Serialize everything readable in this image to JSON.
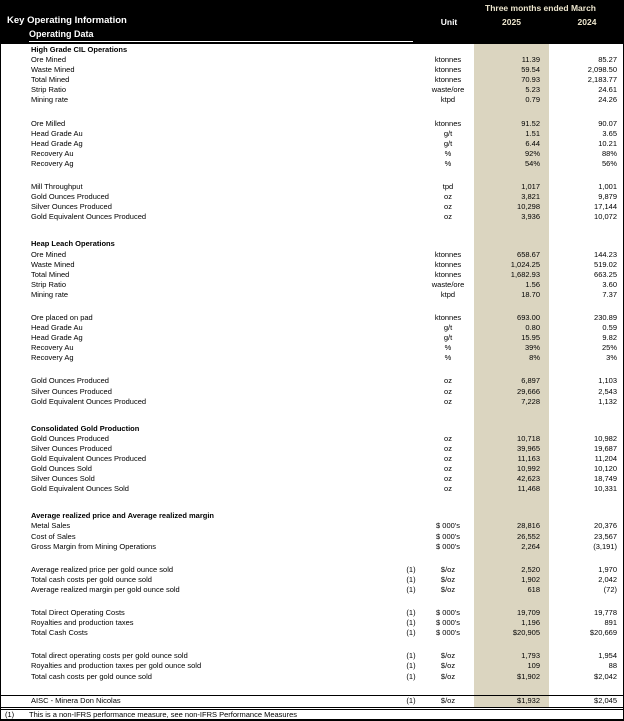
{
  "header": {
    "title": "Key Operating Information",
    "subtitle": "Operating Data",
    "period_label": "Three months ended March",
    "unit_label": "Unit",
    "col_2025": "2025",
    "col_2024": "2024"
  },
  "colors": {
    "header_bg": "#000000",
    "header_text": "#ffffff",
    "year_header_text": "#ece5cd",
    "column_band": "#dbd5c0"
  },
  "sections": [
    {
      "title": "High Grade CIL Operations",
      "groups": [
        [
          {
            "label": "Ore Mined",
            "fn": "",
            "unit": "ktonnes",
            "v2025": "11.39",
            "v2024": "85.27"
          },
          {
            "label": "Waste Mined",
            "fn": "",
            "unit": "ktonnes",
            "v2025": "59.54",
            "v2024": "2,098.50"
          },
          {
            "label": "Total Mined",
            "fn": "",
            "unit": "ktonnes",
            "v2025": "70.93",
            "v2024": "2,183.77"
          },
          {
            "label": "Strip Ratio",
            "fn": "",
            "unit": "waste/ore",
            "v2025": "5.23",
            "v2024": "24.61"
          },
          {
            "label": "Mining rate",
            "fn": "",
            "unit": "ktpd",
            "v2025": "0.79",
            "v2024": "24.26"
          }
        ],
        [
          {
            "label": "Ore Milled",
            "fn": "",
            "unit": "ktonnes",
            "v2025": "91.52",
            "v2024": "90.07"
          },
          {
            "label": "Head Grade Au",
            "fn": "",
            "unit": "g/t",
            "v2025": "1.51",
            "v2024": "3.65"
          },
          {
            "label": "Head Grade Ag",
            "fn": "",
            "unit": "g/t",
            "v2025": "6.44",
            "v2024": "10.21"
          },
          {
            "label": "Recovery Au",
            "fn": "",
            "unit": "%",
            "v2025": "92%",
            "v2024": "88%"
          },
          {
            "label": "Recovery Ag",
            "fn": "",
            "unit": "%",
            "v2025": "54%",
            "v2024": "56%"
          }
        ],
        [
          {
            "label": "Mill Throughput",
            "fn": "",
            "unit": "tpd",
            "v2025": "1,017",
            "v2024": "1,001"
          },
          {
            "label": "Gold Ounces Produced",
            "fn": "",
            "unit": "oz",
            "v2025": "3,821",
            "v2024": "9,879"
          },
          {
            "label": "Silver Ounces Produced",
            "fn": "",
            "unit": "oz",
            "v2025": "10,298",
            "v2024": "17,144"
          },
          {
            "label": "Gold Equivalent Ounces Produced",
            "fn": "",
            "unit": "oz",
            "v2025": "3,936",
            "v2024": "10,072"
          }
        ]
      ]
    },
    {
      "title": "Heap Leach Operations",
      "groups": [
        [
          {
            "label": "Ore Mined",
            "fn": "",
            "unit": "ktonnes",
            "v2025": "658.67",
            "v2024": "144.23"
          },
          {
            "label": "Waste Mined",
            "fn": "",
            "unit": "ktonnes",
            "v2025": "1,024.25",
            "v2024": "519.02"
          },
          {
            "label": "Total Mined",
            "fn": "",
            "unit": "ktonnes",
            "v2025": "1,682.93",
            "v2024": "663.25"
          },
          {
            "label": "Strip Ratio",
            "fn": "",
            "unit": "waste/ore",
            "v2025": "1.56",
            "v2024": "3.60"
          },
          {
            "label": "Mining rate",
            "fn": "",
            "unit": "ktpd",
            "v2025": "18.70",
            "v2024": "7.37"
          }
        ],
        [
          {
            "label": "Ore placed on pad",
            "fn": "",
            "unit": "ktonnes",
            "v2025": "693.00",
            "v2024": "230.89"
          },
          {
            "label": "Head Grade Au",
            "fn": "",
            "unit": "g/t",
            "v2025": "0.80",
            "v2024": "0.59"
          },
          {
            "label": "Head Grade Ag",
            "fn": "",
            "unit": "g/t",
            "v2025": "15.95",
            "v2024": "9.82"
          },
          {
            "label": "Recovery Au",
            "fn": "",
            "unit": "%",
            "v2025": "39%",
            "v2024": "25%"
          },
          {
            "label": "Recovery Ag",
            "fn": "",
            "unit": "%",
            "v2025": "8%",
            "v2024": "3%"
          }
        ],
        [
          {
            "label": "Gold Ounces Produced",
            "fn": "",
            "unit": "oz",
            "v2025": "6,897",
            "v2024": "1,103"
          },
          {
            "label": "Silver Ounces Produced",
            "fn": "",
            "unit": "oz",
            "v2025": "29,666",
            "v2024": "2,543"
          },
          {
            "label": "Gold Equivalent Ounces Produced",
            "fn": "",
            "unit": "oz",
            "v2025": "7,228",
            "v2024": "1,132"
          }
        ]
      ]
    },
    {
      "title": "Consolidated Gold Production",
      "groups": [
        [
          {
            "label": "Gold Ounces Produced",
            "fn": "",
            "unit": "oz",
            "v2025": "10,718",
            "v2024": "10,982"
          },
          {
            "label": "Silver Ounces Produced",
            "fn": "",
            "unit": "oz",
            "v2025": "39,965",
            "v2024": "19,687"
          },
          {
            "label": "Gold Equivalent Ounces Produced",
            "fn": "",
            "unit": "oz",
            "v2025": "11,163",
            "v2024": "11,204"
          },
          {
            "label": "Gold Ounces Sold",
            "fn": "",
            "unit": "oz",
            "v2025": "10,992",
            "v2024": "10,120"
          },
          {
            "label": "Silver Ounces Sold",
            "fn": "",
            "unit": "oz",
            "v2025": "42,623",
            "v2024": "18,749"
          },
          {
            "label": "Gold Equivalent Ounces Sold",
            "fn": "",
            "unit": "oz",
            "v2025": "11,468",
            "v2024": "10,331"
          }
        ]
      ]
    },
    {
      "title": "Average realized price and Average realized margin",
      "groups": [
        [
          {
            "label": "Metal Sales",
            "fn": "",
            "unit": "$ 000's",
            "v2025": "28,816",
            "v2024": "20,376"
          },
          {
            "label": "Cost of Sales",
            "fn": "",
            "unit": "$ 000's",
            "v2025": "26,552",
            "v2024": "23,567"
          },
          {
            "label": "Gross Margin from Mining Operations",
            "fn": "",
            "unit": "$ 000's",
            "v2025": "2,264",
            "v2024": "(3,191)"
          }
        ],
        [
          {
            "label": "Average realized price per gold ounce sold",
            "fn": "(1)",
            "unit": "$/oz",
            "v2025": "2,520",
            "v2024": "1,970"
          },
          {
            "label": "Total cash costs per gold ounce sold",
            "fn": "(1)",
            "unit": "$/oz",
            "v2025": "1,902",
            "v2024": "2,042"
          },
          {
            "label": "Average realized margin per gold ounce sold",
            "fn": "(1)",
            "unit": "$/oz",
            "v2025": "618",
            "v2024": "(72)"
          }
        ],
        [
          {
            "label": "Total Direct Operating Costs",
            "fn": "(1)",
            "unit": "$ 000's",
            "v2025": "19,709",
            "v2024": "19,778"
          },
          {
            "label": "Royalties and production taxes",
            "fn": "(1)",
            "unit": "$ 000's",
            "v2025": "1,196",
            "v2024": "891"
          },
          {
            "label": "Total Cash Costs",
            "fn": "(1)",
            "unit": "$ 000's",
            "v2025": "$20,905",
            "v2024": "$20,669"
          }
        ],
        [
          {
            "label": "Total direct operating costs per gold ounce sold",
            "fn": "(1)",
            "unit": "$/oz",
            "v2025": "1,793",
            "v2024": "1,954"
          },
          {
            "label": "Royalties and production taxes per gold ounce sold",
            "fn": "(1)",
            "unit": "$/oz",
            "v2025": "109",
            "v2024": "88"
          },
          {
            "label": "Total cash costs per gold ounce sold",
            "fn": "(1)",
            "unit": "$/oz",
            "v2025": "$1,902",
            "v2024": "$2,042"
          }
        ],
        [
          {
            "label": "AISC - Minera Don Nicolas",
            "fn": "(1)",
            "unit": "$/oz",
            "v2025": "$1,932",
            "v2024": "$2,045",
            "rule_above": true
          }
        ]
      ]
    }
  ],
  "footnote": {
    "marker": "(1)",
    "text": "This is a non-IFRS performance measure, see non-IFRS Performance Measures"
  }
}
